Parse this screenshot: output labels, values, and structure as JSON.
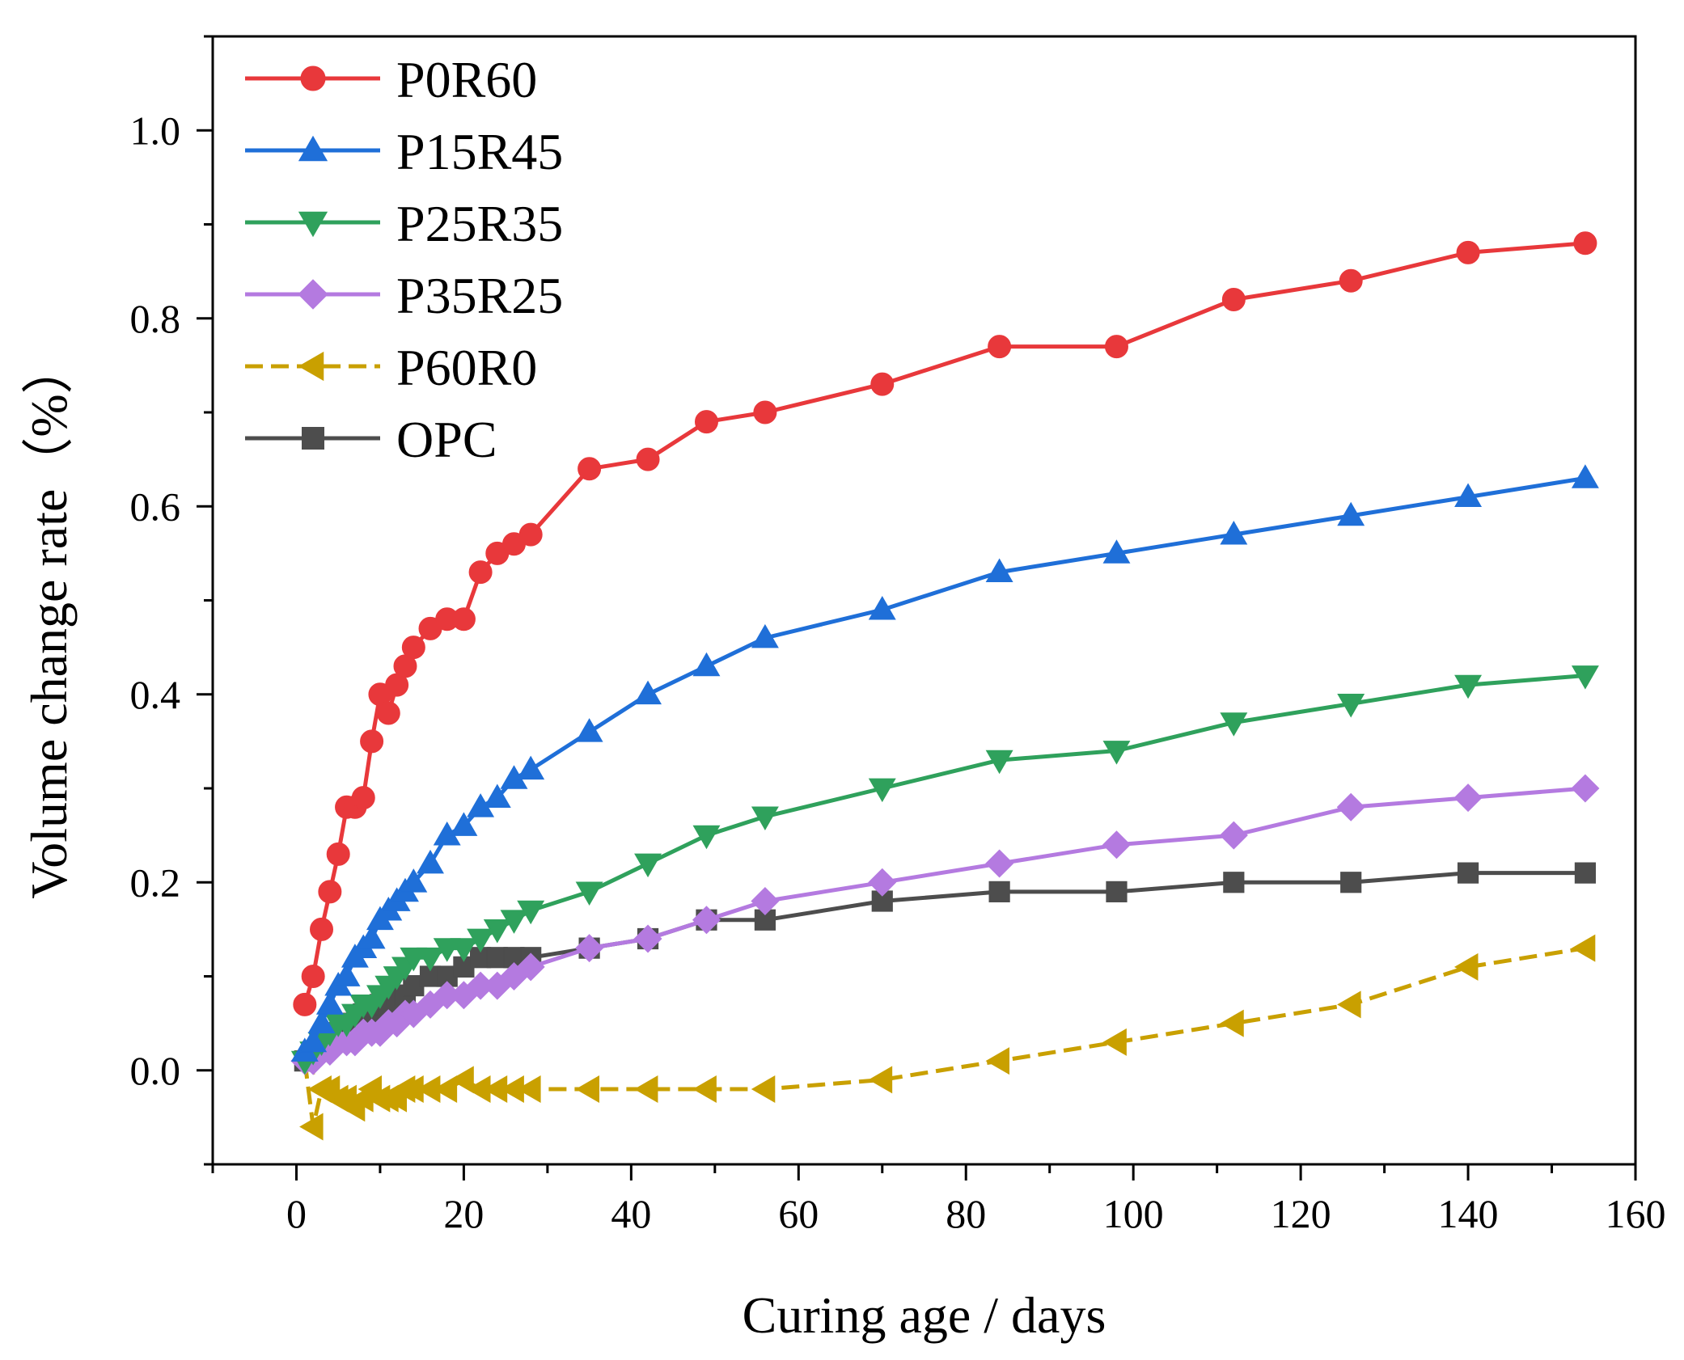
{
  "chart_data": {
    "type": "line",
    "title": "",
    "xlabel": "Curing age / days",
    "ylabel": "Volume change rate（%）",
    "xlim": [
      -10,
      160
    ],
    "ylim": [
      -0.1,
      1.1
    ],
    "xticks": [
      0,
      20,
      40,
      60,
      80,
      100,
      120,
      140,
      160
    ],
    "yticks": [
      0.0,
      0.2,
      0.4,
      0.6,
      0.8,
      1.0
    ],
    "xtick_labels": [
      "0",
      "20",
      "40",
      "60",
      "80",
      "100",
      "120",
      "140",
      "160"
    ],
    "ytick_labels": [
      "0.0",
      "0.2",
      "0.4",
      "0.6",
      "0.8",
      "1.0"
    ],
    "legend_position": "top-left",
    "series": [
      {
        "name": "P0R60",
        "color": "#e8383b",
        "marker": "circle",
        "dash": false,
        "x": [
          1,
          2,
          3,
          4,
          5,
          6,
          7,
          8,
          9,
          10,
          11,
          12,
          13,
          14,
          16,
          18,
          20,
          22,
          24,
          26,
          28,
          35,
          42,
          49,
          56,
          70,
          84,
          98,
          112,
          126,
          140,
          154
        ],
        "y": [
          0.07,
          0.1,
          0.15,
          0.19,
          0.23,
          0.28,
          0.28,
          0.29,
          0.35,
          0.4,
          0.38,
          0.41,
          0.43,
          0.45,
          0.47,
          0.48,
          0.48,
          0.53,
          0.55,
          0.56,
          0.57,
          0.64,
          0.65,
          0.69,
          0.7,
          0.73,
          0.77,
          0.77,
          0.82,
          0.84,
          0.87,
          0.88
        ]
      },
      {
        "name": "P15R45",
        "color": "#1f6fd8",
        "marker": "triangle-up",
        "dash": false,
        "x": [
          1,
          2,
          3,
          4,
          5,
          6,
          7,
          8,
          9,
          10,
          11,
          12,
          13,
          14,
          16,
          18,
          20,
          22,
          24,
          26,
          28,
          35,
          42,
          49,
          56,
          70,
          84,
          98,
          112,
          126,
          140,
          154
        ],
        "y": [
          0.02,
          0.03,
          0.05,
          0.07,
          0.09,
          0.1,
          0.12,
          0.13,
          0.14,
          0.16,
          0.17,
          0.18,
          0.19,
          0.2,
          0.22,
          0.25,
          0.26,
          0.28,
          0.29,
          0.31,
          0.32,
          0.36,
          0.4,
          0.43,
          0.46,
          0.49,
          0.53,
          0.55,
          0.57,
          0.59,
          0.61,
          0.63
        ]
      },
      {
        "name": "P25R35",
        "color": "#2fa15c",
        "marker": "triangle-down",
        "dash": false,
        "x": [
          1,
          2,
          3,
          4,
          5,
          6,
          7,
          8,
          9,
          10,
          11,
          12,
          13,
          14,
          16,
          18,
          20,
          22,
          24,
          26,
          28,
          35,
          42,
          49,
          56,
          70,
          84,
          98,
          112,
          126,
          140,
          154
        ],
        "y": [
          0.01,
          0.02,
          0.03,
          0.04,
          0.05,
          0.05,
          0.06,
          0.07,
          0.07,
          0.08,
          0.09,
          0.1,
          0.11,
          0.12,
          0.12,
          0.13,
          0.13,
          0.14,
          0.15,
          0.16,
          0.17,
          0.19,
          0.22,
          0.25,
          0.27,
          0.3,
          0.33,
          0.34,
          0.37,
          0.39,
          0.41,
          0.42
        ]
      },
      {
        "name": "P35R25",
        "color": "#b47ae0",
        "marker": "diamond",
        "dash": false,
        "x": [
          1,
          2,
          3,
          4,
          5,
          6,
          7,
          8,
          9,
          10,
          11,
          12,
          13,
          14,
          16,
          18,
          20,
          22,
          24,
          26,
          28,
          35,
          42,
          49,
          56,
          70,
          84,
          98,
          112,
          126,
          140,
          154
        ],
        "y": [
          0.01,
          0.01,
          0.02,
          0.02,
          0.03,
          0.03,
          0.03,
          0.04,
          0.04,
          0.04,
          0.05,
          0.05,
          0.06,
          0.06,
          0.07,
          0.08,
          0.08,
          0.09,
          0.09,
          0.1,
          0.11,
          0.13,
          0.14,
          0.16,
          0.18,
          0.2,
          0.22,
          0.24,
          0.25,
          0.28,
          0.29,
          0.3
        ]
      },
      {
        "name": "P60R0",
        "color": "#c9a000",
        "marker": "triangle-left",
        "dash": true,
        "x": [
          1,
          2,
          3,
          4,
          5,
          6,
          7,
          8,
          9,
          10,
          11,
          12,
          13,
          14,
          16,
          18,
          20,
          22,
          24,
          26,
          28,
          35,
          42,
          49,
          56,
          70,
          84,
          98,
          112,
          126,
          140,
          154
        ],
        "y": [
          0.01,
          -0.06,
          -0.02,
          -0.02,
          -0.03,
          -0.03,
          -0.04,
          -0.03,
          -0.02,
          -0.03,
          -0.03,
          -0.03,
          -0.02,
          -0.02,
          -0.02,
          -0.02,
          -0.01,
          -0.02,
          -0.02,
          -0.02,
          -0.02,
          -0.02,
          -0.02,
          -0.02,
          -0.02,
          -0.01,
          0.01,
          0.03,
          0.05,
          0.07,
          0.11,
          0.13
        ]
      },
      {
        "name": "OPC",
        "color": "#4d4d4d",
        "marker": "square",
        "dash": false,
        "x": [
          1,
          2,
          3,
          4,
          5,
          6,
          7,
          8,
          9,
          10,
          11,
          12,
          13,
          14,
          16,
          18,
          20,
          22,
          24,
          26,
          28,
          35,
          42,
          49,
          56,
          70,
          84,
          98,
          112,
          126,
          140,
          154
        ],
        "y": [
          0.01,
          0.02,
          0.03,
          0.03,
          0.04,
          0.05,
          0.05,
          0.06,
          0.06,
          0.07,
          0.07,
          0.08,
          0.08,
          0.09,
          0.1,
          0.1,
          0.11,
          0.12,
          0.12,
          0.12,
          0.12,
          0.13,
          0.14,
          0.16,
          0.16,
          0.18,
          0.19,
          0.19,
          0.2,
          0.2,
          0.21,
          0.21
        ]
      }
    ]
  }
}
